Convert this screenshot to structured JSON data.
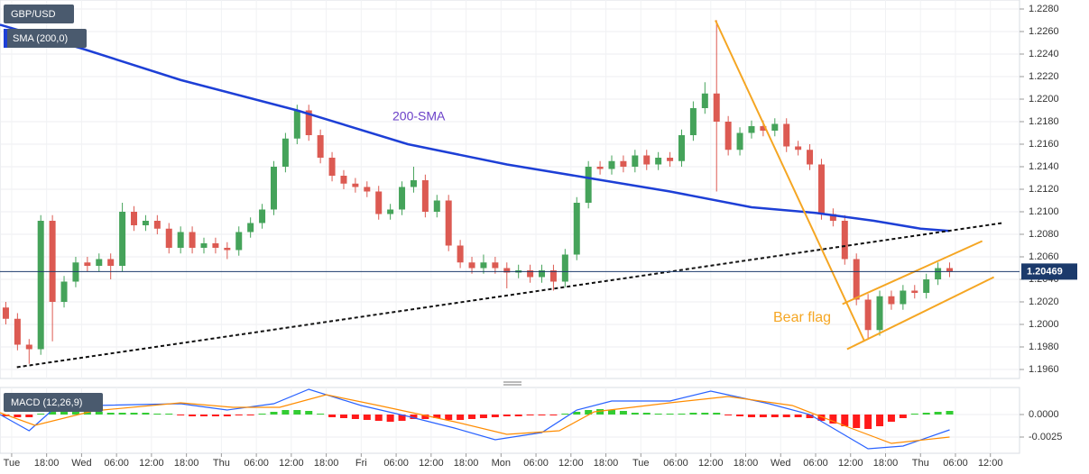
{
  "chart_data": {
    "type": "candlestick",
    "title": "GBP/USD",
    "up_color": "#45a35a",
    "down_color": "#dc5a52",
    "x": [
      11,
      13,
      15,
      17,
      19,
      21,
      23,
      25,
      27,
      29,
      31,
      33,
      35,
      37,
      39,
      41,
      43,
      45,
      47,
      49,
      51,
      53,
      55,
      57,
      59,
      61,
      63,
      65,
      67,
      69,
      71,
      73,
      75,
      77,
      79,
      81,
      83,
      85,
      87,
      89,
      91,
      93,
      95,
      97,
      99,
      101,
      103,
      105,
      107,
      109,
      111,
      113,
      115,
      117,
      119,
      121,
      123,
      125,
      127,
      129,
      131,
      133,
      135,
      137,
      139,
      141,
      143,
      145,
      147,
      149,
      151,
      153,
      155,
      157,
      159,
      161,
      163,
      165,
      167,
      169,
      171,
      173
    ],
    "open": [
      1.2015,
      1.2005,
      1.1982,
      1.1978,
      1.2092,
      1.202,
      1.2038,
      1.2055,
      1.2052,
      1.2058,
      1.2052,
      1.21,
      1.2088,
      1.2092,
      1.2085,
      1.2068,
      1.2082,
      1.2068,
      1.2072,
      1.2068,
      1.2066,
      1.2082,
      1.209,
      1.2102,
      1.214,
      1.2165,
      1.219,
      1.2168,
      1.2148,
      1.2132,
      1.2125,
      1.2122,
      1.2118,
      1.2098,
      1.2102,
      1.2122,
      1.2128,
      1.21,
      1.211,
      1.207,
      1.2055,
      1.205,
      1.2055,
      1.205,
      1.2046,
      1.2048,
      1.2042,
      1.2048,
      1.2038,
      1.2062,
      1.2108,
      1.214,
      1.2138,
      1.2145,
      1.214,
      1.215,
      1.2142,
      1.2148,
      1.2145,
      1.2168,
      1.2192,
      1.2205,
      1.218,
      1.2155,
      1.217,
      1.2176,
      1.2172,
      1.2178,
      1.2158,
      1.2155,
      1.2142,
      1.2098,
      1.2092,
      1.2058,
      1.2022,
      1.1995,
      1.2025,
      1.2018,
      1.203,
      1.2028,
      1.204,
      1.205
    ],
    "high": [
      1.202,
      1.201,
      1.1987,
      1.2097,
      1.2097,
      1.2043,
      1.206,
      1.206,
      1.2063,
      1.2063,
      1.2108,
      1.2105,
      1.2097,
      1.2097,
      1.209,
      1.2087,
      1.2087,
      1.2077,
      1.2077,
      1.2073,
      1.2087,
      1.2095,
      1.2107,
      1.2145,
      1.217,
      1.2195,
      1.2195,
      1.2173,
      1.2153,
      1.2137,
      1.213,
      1.2127,
      1.2123,
      1.2107,
      1.2127,
      1.214,
      1.2133,
      1.2115,
      1.2115,
      1.2075,
      1.206,
      1.2062,
      1.206,
      1.2055,
      1.2053,
      1.2053,
      1.2053,
      1.2053,
      1.2067,
      1.2113,
      1.2145,
      1.2145,
      1.215,
      1.215,
      1.2155,
      1.2155,
      1.2153,
      1.2153,
      1.2173,
      1.2198,
      1.2215,
      1.227,
      1.2185,
      1.2175,
      1.2181,
      1.2181,
      1.2183,
      1.2183,
      1.2163,
      1.216,
      1.2147,
      1.2103,
      1.2097,
      1.2063,
      1.2027,
      1.203,
      1.203,
      1.2035,
      1.2035,
      1.2045,
      1.2055,
      1.2055
    ],
    "low": [
      1.2,
      1.1977,
      1.1965,
      1.1973,
      1.1985,
      1.2015,
      1.2033,
      1.2047,
      1.2047,
      1.204,
      1.2047,
      1.2083,
      1.2083,
      1.208,
      1.2063,
      1.2063,
      1.2063,
      1.2063,
      1.2063,
      1.2058,
      1.2061,
      1.2077,
      1.2085,
      1.2097,
      1.2135,
      1.216,
      1.2163,
      1.2143,
      1.2127,
      1.212,
      1.2117,
      1.2113,
      1.2093,
      1.2093,
      1.2097,
      1.2117,
      1.2095,
      1.2095,
      1.2065,
      1.205,
      1.2045,
      1.2045,
      1.2045,
      1.2032,
      1.2041,
      1.2037,
      1.2037,
      1.203,
      1.2033,
      1.2057,
      1.2103,
      1.2133,
      1.2133,
      1.2135,
      1.2135,
      1.2137,
      1.2137,
      1.214,
      1.214,
      1.2163,
      1.2187,
      1.2118,
      1.215,
      1.215,
      1.2165,
      1.2167,
      1.2167,
      1.2153,
      1.215,
      1.2137,
      1.2093,
      1.2087,
      1.2053,
      1.2017,
      1.1988,
      1.199,
      1.2013,
      1.2013,
      1.2023,
      1.2023,
      1.2035,
      1.2042
    ],
    "close": [
      1.2005,
      1.1982,
      1.1978,
      1.2092,
      1.202,
      1.2038,
      1.2055,
      1.2052,
      1.2058,
      1.2052,
      1.21,
      1.2088,
      1.2092,
      1.2085,
      1.2068,
      1.2082,
      1.2068,
      1.2072,
      1.2068,
      1.2066,
      1.2082,
      1.209,
      1.2102,
      1.214,
      1.2165,
      1.219,
      1.2168,
      1.2148,
      1.2132,
      1.2125,
      1.2122,
      1.2118,
      1.2098,
      1.2102,
      1.2122,
      1.2128,
      1.21,
      1.211,
      1.207,
      1.2055,
      1.205,
      1.2055,
      1.205,
      1.2046,
      1.2048,
      1.2042,
      1.2048,
      1.2038,
      1.2062,
      1.2108,
      1.214,
      1.2138,
      1.2145,
      1.214,
      1.215,
      1.2142,
      1.2148,
      1.2145,
      1.2168,
      1.2192,
      1.2205,
      1.218,
      1.2155,
      1.217,
      1.2176,
      1.2172,
      1.2178,
      1.2158,
      1.2155,
      1.2142,
      1.2098,
      1.2092,
      1.2058,
      1.2022,
      1.1995,
      1.2025,
      1.2018,
      1.203,
      1.2028,
      1.204,
      1.205,
      1.2047
    ],
    "xlim": [
      10,
      185
    ],
    "xticks": [
      {
        "value": 12,
        "label": "Tue"
      },
      {
        "value": 18,
        "label": "18:00"
      },
      {
        "value": 24,
        "label": "Wed"
      },
      {
        "value": 30,
        "label": "06:00"
      },
      {
        "value": 36,
        "label": "12:00"
      },
      {
        "value": 42,
        "label": "18:00"
      },
      {
        "value": 48,
        "label": "Thu"
      },
      {
        "value": 54,
        "label": "06:00"
      },
      {
        "value": 60,
        "label": "12:00"
      },
      {
        "value": 66,
        "label": "18:00"
      },
      {
        "value": 72,
        "label": "Fri"
      },
      {
        "value": 78,
        "label": "06:00"
      },
      {
        "value": 84,
        "label": "12:00"
      },
      {
        "value": 90,
        "label": "18:00"
      },
      {
        "value": 96,
        "label": "Mon"
      },
      {
        "value": 102,
        "label": "06:00"
      },
      {
        "value": 108,
        "label": "12:00"
      },
      {
        "value": 114,
        "label": "18:00"
      },
      {
        "value": 120,
        "label": "Tue"
      },
      {
        "value": 126,
        "label": "06:00"
      },
      {
        "value": 132,
        "label": "12:00"
      },
      {
        "value": 138,
        "label": "18:00"
      },
      {
        "value": 144,
        "label": "Wed"
      },
      {
        "value": 150,
        "label": "06:00"
      },
      {
        "value": 156,
        "label": "12:00"
      },
      {
        "value": 162,
        "label": "18:00"
      },
      {
        "value": 168,
        "label": "Thu"
      },
      {
        "value": 174,
        "label": "06:00"
      },
      {
        "value": 180,
        "label": "12:00"
      }
    ],
    "ylim": [
      1.1952,
      1.2288
    ],
    "yticks": [
      {
        "value": 1.228,
        "label": "1.2280"
      },
      {
        "value": 1.226,
        "label": "1.2260"
      },
      {
        "value": 1.224,
        "label": "1.2240"
      },
      {
        "value": 1.222,
        "label": "1.2220"
      },
      {
        "value": 1.22,
        "label": "1.2200"
      },
      {
        "value": 1.218,
        "label": "1.2180"
      },
      {
        "value": 1.216,
        "label": "1.2160"
      },
      {
        "value": 1.214,
        "label": "1.2140"
      },
      {
        "value": 1.212,
        "label": "1.2120"
      },
      {
        "value": 1.21,
        "label": "1.2100"
      },
      {
        "value": 1.208,
        "label": "1.2080"
      },
      {
        "value": 1.206,
        "label": "1.2060"
      },
      {
        "value": 1.204,
        "label": "1.2040"
      },
      {
        "value": 1.202,
        "label": "1.2020"
      },
      {
        "value": 1.2,
        "label": "1.2000"
      },
      {
        "value": 1.198,
        "label": "1.1980"
      },
      {
        "value": 1.196,
        "label": "1.1960"
      }
    ],
    "grid": true,
    "last_price": 1.20469,
    "last_price_color": "#1b3a6b",
    "sma": {
      "name": "SMA (200,0)",
      "label": "200-SMA",
      "color": "#1d3fd6",
      "x": [
        10,
        24,
        41,
        61,
        80,
        97,
        111,
        125,
        139,
        150,
        160,
        168,
        173
      ],
      "values": [
        1.2266,
        1.2245,
        1.2217,
        1.219,
        1.216,
        1.2142,
        1.213,
        1.2118,
        1.2104,
        1.2099,
        1.2092,
        1.2085,
        1.2083
      ]
    },
    "flag_label": "Bear flag",
    "trendlines": [
      {
        "color": "#111111",
        "dashed": true,
        "x": [
          12.9,
          182
        ],
        "values": [
          1.1962,
          1.209
        ]
      },
      {
        "color": "#f5a623",
        "dashed": false,
        "x": [
          132.8,
          158.3
        ],
        "values": [
          1.227,
          1.1986
        ]
      },
      {
        "color": "#f5a623",
        "dashed": false,
        "x": [
          154.6,
          178.6
        ],
        "values": [
          1.2018,
          1.2074
        ]
      },
      {
        "color": "#f5a623",
        "dashed": false,
        "x": [
          155.4,
          180.6
        ],
        "values": [
          1.1978,
          1.2042
        ]
      }
    ],
    "macd": {
      "title": "MACD (12,26,9)",
      "up_color": "#33cc33",
      "down_color": "#ff1a1a",
      "histogram": [
        -0.0002,
        -0.0003,
        -0.0003,
        0.0001,
        0.0003,
        0.0003,
        0.0003,
        0.0003,
        0.0003,
        0.0002,
        0.0002,
        0.0002,
        0.0002,
        0.0001,
        0.0001,
        -0.0001,
        -0.0002,
        -0.0002,
        -0.0002,
        -0.0002,
        -0.0001,
        -0.0001,
        0.0001,
        0.0003,
        0.0005,
        0.0005,
        0.0004,
        0.0001,
        -0.0003,
        -0.0004,
        -0.0005,
        -0.0006,
        -0.0007,
        -0.0008,
        -0.0007,
        -0.0005,
        -0.0005,
        -0.0004,
        -0.0006,
        -0.0006,
        -0.0005,
        -0.0004,
        -0.0003,
        -0.0002,
        -0.0002,
        -0.0001,
        -0.0001,
        -0.0001,
        0.0001,
        0.0003,
        0.0005,
        0.0006,
        0.0005,
        0.0004,
        0.0002,
        0.0002,
        0.0001,
        0.0001,
        0.0001,
        0.0002,
        0.0002,
        0.0002,
        -0.0001,
        -0.0002,
        -0.0003,
        -0.0003,
        -0.0003,
        -0.0003,
        -0.0003,
        -0.0004,
        -0.0007,
        -0.001,
        -0.0013,
        -0.0015,
        -0.0016,
        -0.0013,
        -0.0008,
        -0.0004,
        0.0001,
        0.0002,
        0.0003,
        0.0004
      ],
      "macd_line": {
        "color": "#2962ff",
        "x": [
          10,
          15,
          19,
          26,
          41,
          49,
          57,
          63,
          72,
          80,
          88,
          95,
          103,
          109,
          115,
          125,
          132,
          142,
          149,
          159,
          165,
          173
        ],
        "values": [
          0,
          -0.0018,
          0.0005,
          0.001,
          0.0012,
          0.0005,
          0.0012,
          0.0028,
          0.001,
          -0.0002,
          -0.0015,
          -0.0028,
          -0.002,
          0.0005,
          0.0015,
          0.0015,
          0.0026,
          0.0012,
          0,
          -0.0038,
          -0.0035,
          -0.0017
        ]
      },
      "signal_line": {
        "color": "#ff8c00",
        "x": [
          10,
          16,
          26,
          41,
          50,
          58,
          66,
          75,
          88,
          97,
          106,
          112,
          125,
          135,
          146,
          156,
          163,
          173
        ],
        "values": [
          0.0002,
          -0.0012,
          0.0004,
          0.0013,
          0.0008,
          0.0008,
          0.0022,
          0.001,
          -0.0008,
          -0.0022,
          -0.0018,
          0.0003,
          0.0013,
          0.002,
          0.001,
          -0.0015,
          -0.0032,
          -0.0025
        ]
      },
      "ylim": [
        -0.0043,
        0.003
      ],
      "yticks": [
        {
          "value": 0,
          "label": "0.0000"
        },
        {
          "value": -0.0025,
          "label": "-0.0025"
        }
      ]
    }
  }
}
